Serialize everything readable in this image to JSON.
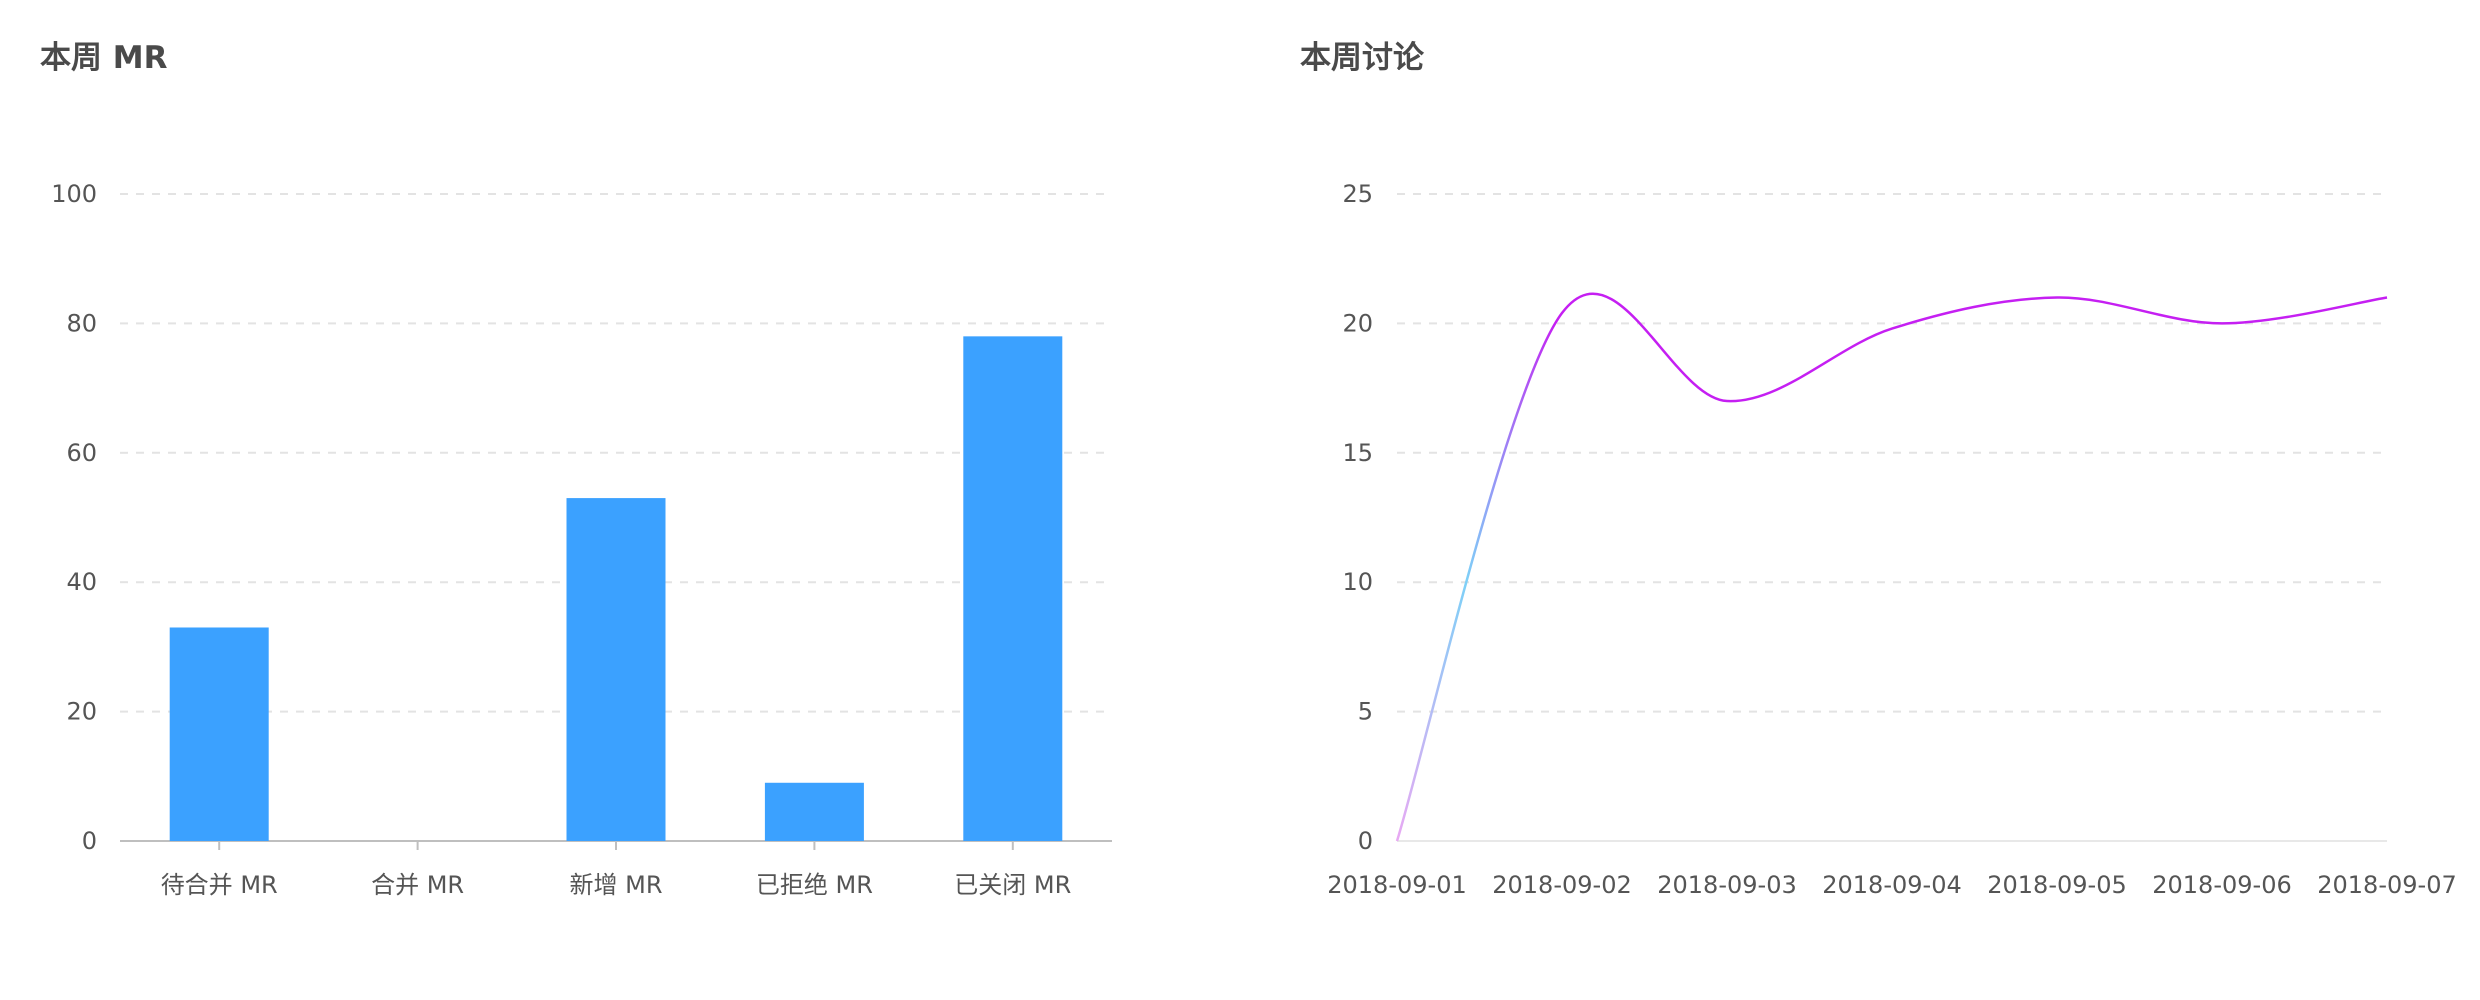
{
  "panels": {
    "mr": {
      "title": "本周 MR"
    },
    "discussion": {
      "title": "本周讨论"
    }
  },
  "colors": {
    "bar": "#3ba1ff",
    "line_start": "#e9a9f3",
    "line_mid": "#7ed0f7",
    "line_end": "#c51ff2",
    "grid": "#e3e3e3",
    "axis": "#bfbfbf",
    "text": "#555555",
    "title": "#4a4a4a"
  },
  "chart_data": [
    {
      "type": "bar",
      "title": "本周 MR",
      "categories": [
        "待合并 MR",
        "合并 MR",
        "新增 MR",
        "已拒绝 MR",
        "已关闭 MR"
      ],
      "values": [
        33,
        0,
        53,
        9,
        78
      ],
      "yticks": [
        "0",
        "20",
        "40",
        "60",
        "80",
        "100"
      ],
      "ylim": [
        0,
        100
      ],
      "grid": true,
      "xlabel": "",
      "ylabel": ""
    },
    {
      "type": "line",
      "title": "本周讨论",
      "x": [
        "2018-09-01",
        "2018-09-02",
        "2018-09-03",
        "2018-09-04",
        "2018-09-05",
        "2018-09-06",
        "2018-09-07"
      ],
      "values": [
        0,
        20.4,
        17,
        19.8,
        21,
        20,
        21
      ],
      "yticks": [
        "0",
        "5",
        "10",
        "15",
        "20",
        "25"
      ],
      "ylim": [
        0,
        25
      ],
      "grid": true,
      "smooth": true,
      "xlabel": "",
      "ylabel": ""
    }
  ]
}
